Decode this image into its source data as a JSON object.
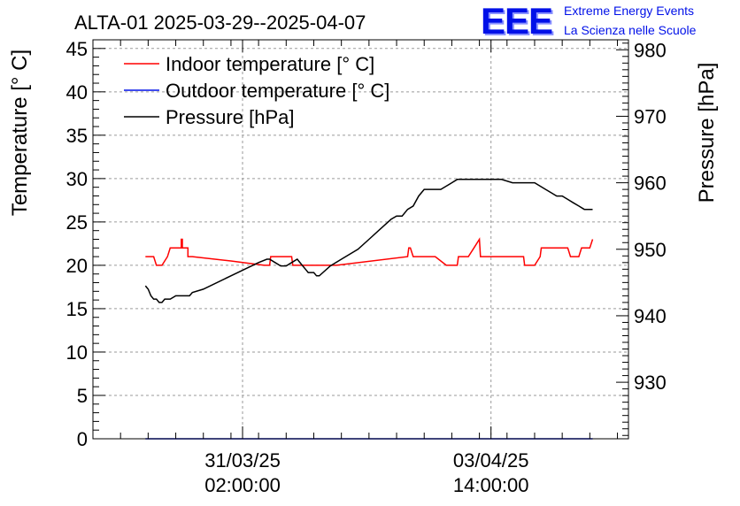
{
  "header": {
    "logo_text": "EEE",
    "logo_line1": "Extreme Energy Events",
    "logo_line2": "La Scienza nelle Scuole",
    "logo_color": "#0010e8"
  },
  "chart_data": {
    "type": "line",
    "title": "ALTA-01 2025-03-29--2025-04-07",
    "ylabel": "Temperature [° C]",
    "y2label": "Pressure [hPa]",
    "ylim": [
      0,
      46
    ],
    "y2lim": [
      921.5,
      981.5
    ],
    "yticks": [
      0,
      5,
      10,
      15,
      20,
      25,
      30,
      35,
      40,
      45
    ],
    "y2ticks": [
      930,
      940,
      950,
      960,
      970,
      980
    ],
    "xlim": [
      0,
      9.7
    ],
    "xticks": [
      {
        "x": 2.71,
        "line1": "31/03/25",
        "line2": "02:00:00"
      },
      {
        "x": 7.21,
        "line1": "03/04/25",
        "line2": "14:00:00"
      }
    ],
    "grid": true,
    "legend_position": "top-left",
    "series": [
      {
        "name": "Indoor temperature [° C]",
        "axis": "left",
        "color": "#ff0000",
        "x": [
          0.95,
          1.1,
          1.15,
          1.25,
          1.35,
          1.4,
          1.5,
          1.5,
          1.6,
          1.6,
          1.62,
          1.62,
          1.72,
          1.72,
          1.8,
          2.5,
          3.1,
          3.2,
          3.22,
          3.3,
          3.3,
          3.6,
          3.62,
          4.1,
          4.2,
          4.22,
          4.4,
          5.7,
          5.72,
          5.75,
          5.8,
          5.82,
          6.2,
          6.4,
          6.42,
          6.45,
          6.5,
          6.55,
          6.6,
          6.62,
          6.8,
          6.9,
          7.0,
          7.02,
          7.7,
          7.8,
          7.82,
          7.9,
          8.0,
          8.1,
          8.12,
          8.3,
          8.6,
          8.65,
          8.7,
          8.8,
          8.85,
          8.9,
          9.0,
          9.05
        ],
        "y": [
          21,
          21,
          20,
          20,
          21,
          22,
          22,
          22,
          22,
          23,
          23,
          22,
          22,
          21,
          21,
          20.5,
          20,
          20,
          21,
          21,
          21,
          21,
          20,
          20,
          20,
          20,
          20,
          21,
          22,
          22,
          21,
          21,
          21,
          20,
          20,
          20,
          20,
          20,
          20,
          21,
          21,
          22,
          23,
          21,
          21,
          21,
          20,
          20,
          20,
          21,
          22,
          22,
          22,
          21,
          21,
          21,
          22,
          22,
          22,
          23
        ]
      },
      {
        "name": "Outdoor temperature [° C]",
        "axis": "left",
        "color": "#0010e8",
        "x": [
          0.95,
          9.05
        ],
        "y": [
          0,
          0
        ]
      },
      {
        "name": "Pressure [hPa]",
        "axis": "right",
        "color": "#000000",
        "x": [
          0.95,
          1.0,
          1.05,
          1.1,
          1.15,
          1.2,
          1.25,
          1.3,
          1.4,
          1.5,
          1.6,
          1.7,
          1.75,
          1.8,
          2.0,
          2.5,
          3.0,
          3.15,
          3.2,
          3.3,
          3.4,
          3.5,
          3.6,
          3.7,
          3.8,
          3.85,
          3.9,
          4.0,
          4.05,
          4.1,
          4.3,
          4.5,
          4.8,
          5.0,
          5.2,
          5.4,
          5.5,
          5.6,
          5.7,
          5.8,
          5.9,
          6.0,
          6.1,
          6.3,
          6.4,
          6.5,
          6.6,
          6.7,
          6.8,
          6.9,
          7.0,
          7.2,
          7.4,
          7.6,
          7.8,
          8.0,
          8.1,
          8.2,
          8.3,
          8.4,
          8.5,
          8.6,
          8.7,
          8.8,
          8.9,
          9.05
        ],
        "y": [
          944.5,
          944,
          943,
          942.5,
          942.5,
          942,
          942,
          942.5,
          942.5,
          943,
          943,
          943,
          943,
          943.5,
          944,
          946,
          948,
          948.5,
          948.5,
          948,
          947.5,
          947.5,
          948,
          948.5,
          947.5,
          947,
          946.5,
          946.5,
          946,
          946,
          947.5,
          948.5,
          950,
          951.5,
          953,
          954.5,
          955,
          955,
          956,
          956.5,
          958,
          959,
          959,
          959,
          959.5,
          960,
          960.5,
          960.5,
          960.5,
          960.5,
          960.5,
          960.5,
          960.5,
          960,
          960,
          960,
          959.5,
          959,
          958.5,
          958,
          958,
          957.5,
          957,
          956.5,
          956,
          956
        ]
      }
    ]
  }
}
